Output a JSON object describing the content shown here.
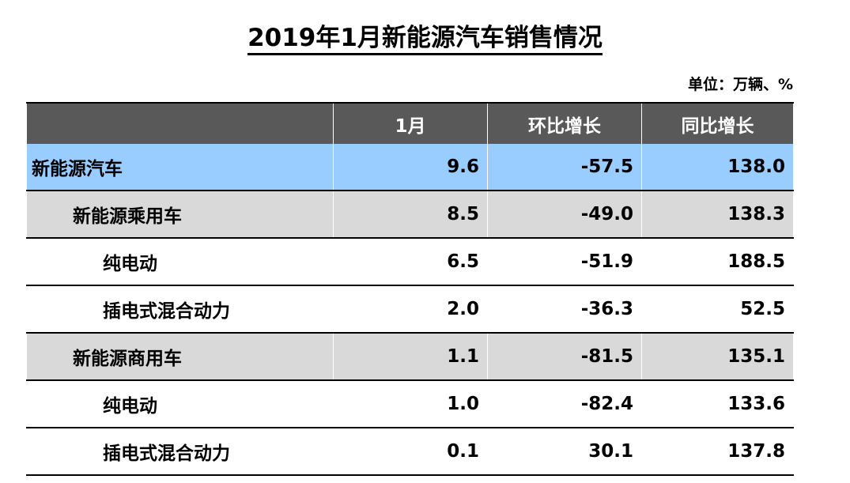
{
  "title": "2019年1月新能源汽车销售情况",
  "unit": "单位：万辆、%",
  "table": {
    "headers": [
      "",
      "1月",
      "环比增长",
      "同比增长"
    ],
    "rows": [
      {
        "label": "新能源汽车",
        "month": "9.6",
        "mom": "-57.5",
        "yoy": "138.0"
      },
      {
        "label": "新能源乘用车",
        "month": "8.5",
        "mom": "-49.0",
        "yoy": "138.3"
      },
      {
        "label": "纯电动",
        "month": "6.5",
        "mom": "-51.9",
        "yoy": "188.5"
      },
      {
        "label": "插电式混合动力",
        "month": "2.0",
        "mom": "-36.3",
        "yoy": "52.5"
      },
      {
        "label": "新能源商用车",
        "month": "1.1",
        "mom": "-81.5",
        "yoy": "135.1"
      },
      {
        "label": "纯电动",
        "month": "1.0",
        "mom": "-82.4",
        "yoy": "133.6"
      },
      {
        "label": "插电式混合动力",
        "month": "0.1",
        "mom": "30.1",
        "yoy": "137.8"
      }
    ]
  },
  "colors": {
    "header_bg": "#595959",
    "total_row_bg": "#99ccff",
    "subtotal_row_bg": "#d9d9d9"
  }
}
